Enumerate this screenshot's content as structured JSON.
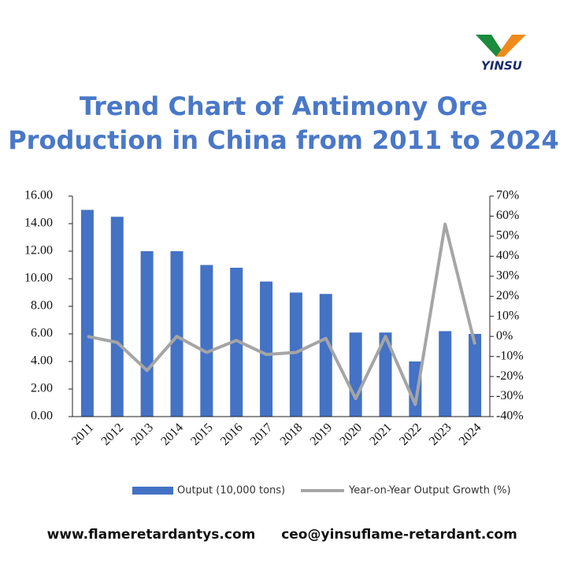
{
  "header": {
    "logo": "YINSU"
  },
  "chart_data": {
    "type": "bar",
    "title": [
      "Trend Chart of Antimony Ore",
      "Production in China from 2011 to 2024"
    ],
    "categories": [
      "2011",
      "2012",
      "2013",
      "2014",
      "2015",
      "2016",
      "2017",
      "2018",
      "2019",
      "2020",
      "2021",
      "2022",
      "2023",
      "2024"
    ],
    "series": [
      {
        "name": "Output (10,000 tons)",
        "type": "bar",
        "color": "#4472c4",
        "values": [
          15.0,
          14.5,
          12.0,
          12.0,
          11.0,
          10.8,
          9.8,
          9.0,
          8.9,
          6.1,
          6.1,
          4.0,
          6.2,
          6.0
        ]
      },
      {
        "name": "Year-on-Year Output Growth (%)",
        "type": "line",
        "axis": "y2",
        "color": "#a5a5a5",
        "values": [
          0,
          -3,
          -17,
          0,
          -8,
          -2,
          -9,
          -8,
          -1,
          -31,
          0,
          -34,
          56,
          -4
        ]
      }
    ],
    "ylim": [
      0,
      16
    ],
    "yticks": [
      {
        "value": 0,
        "label": "0.00"
      },
      {
        "value": 2,
        "label": "2.00"
      },
      {
        "value": 4,
        "label": "4.00"
      },
      {
        "value": 6,
        "label": "6.00"
      },
      {
        "value": 8,
        "label": "8.00"
      },
      {
        "value": 10,
        "label": "10.00"
      },
      {
        "value": 12,
        "label": "12.00"
      },
      {
        "value": 14,
        "label": "14.00"
      },
      {
        "value": 16,
        "label": "16.00"
      }
    ],
    "y2lim": [
      -40,
      70
    ],
    "y2ticks": [
      {
        "value": -40,
        "label": "-40%"
      },
      {
        "value": -30,
        "label": "-30%"
      },
      {
        "value": -20,
        "label": "-20%"
      },
      {
        "value": -10,
        "label": "-10%"
      },
      {
        "value": 0,
        "label": "0%"
      },
      {
        "value": 10,
        "label": "10%"
      },
      {
        "value": 20,
        "label": "20%"
      },
      {
        "value": 30,
        "label": "30%"
      },
      {
        "value": 40,
        "label": "40%"
      },
      {
        "value": 50,
        "label": "50%"
      },
      {
        "value": 60,
        "label": "60%"
      },
      {
        "value": 70,
        "label": "70%"
      }
    ],
    "legend": "bottom"
  },
  "footer": {
    "website": "www.flameretardantys.com",
    "email": "ceo@yinsuflame-retardant.com"
  }
}
